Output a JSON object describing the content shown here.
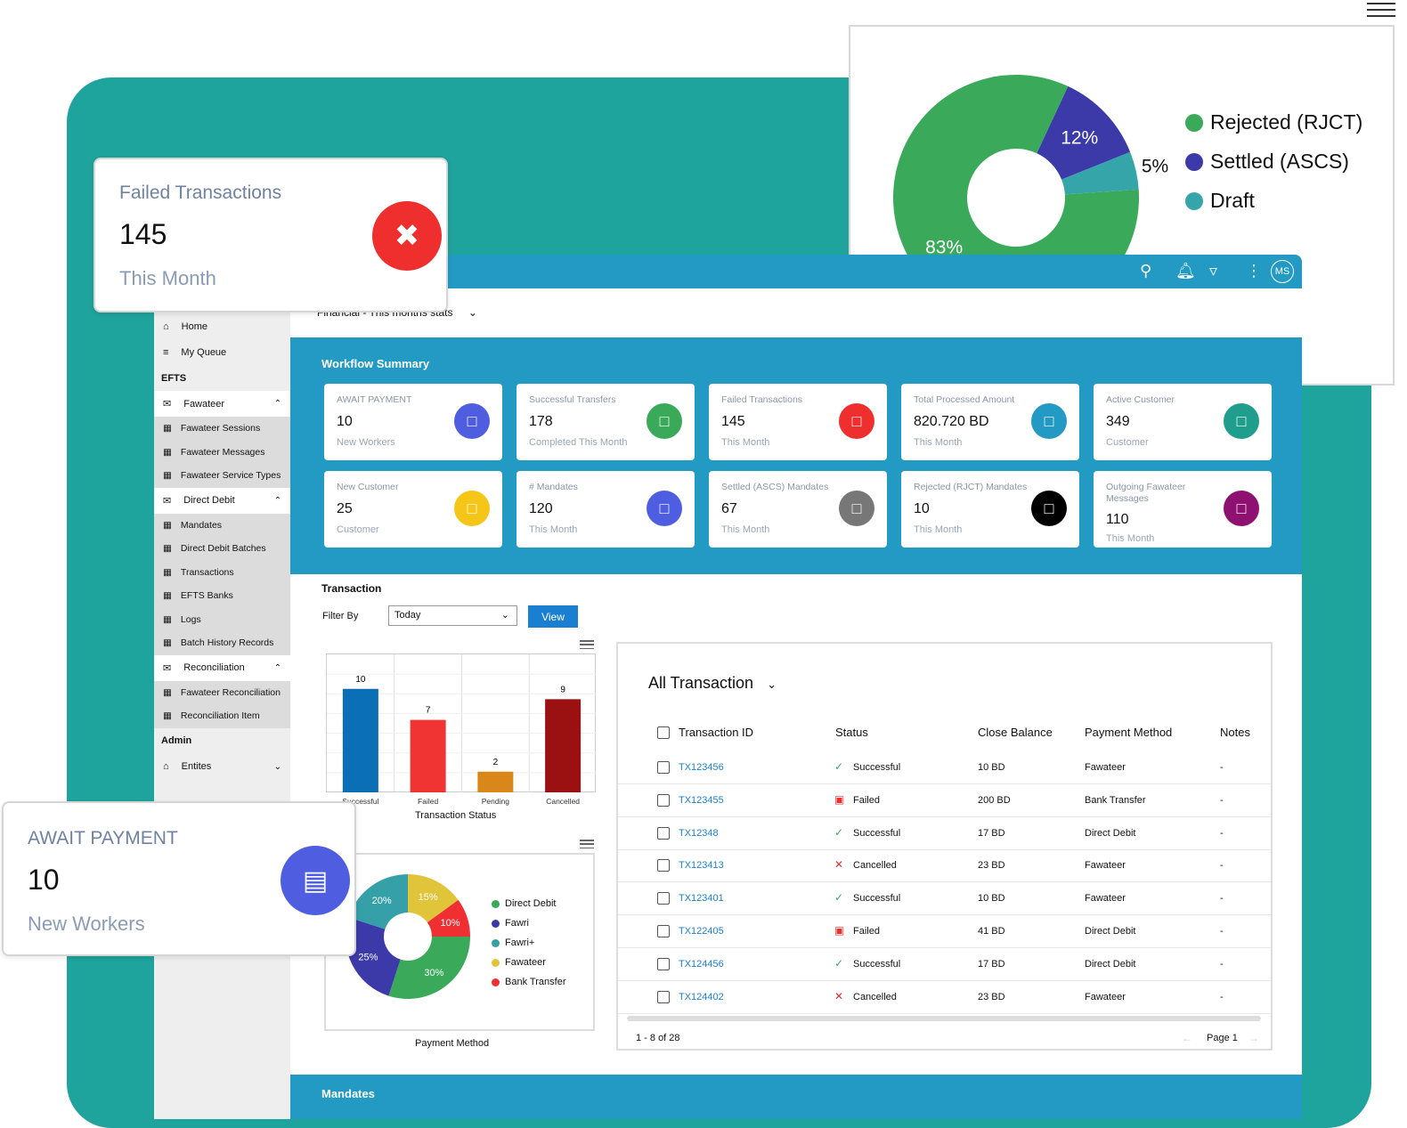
{
  "status_donut": {
    "type": "pie",
    "title": "",
    "series": [
      {
        "name": "Rejected (RJCT)",
        "value": 83,
        "label": "83%",
        "color": "#3aaa5a"
      },
      {
        "name": "Settled (ASCS)",
        "value": 12,
        "label": "12%",
        "color": "#3b3aa8"
      },
      {
        "name": "Draft",
        "value": 5,
        "label": "5%",
        "color": "#36a5a9"
      }
    ]
  },
  "header": {
    "avatar": "MS",
    "dashboard_select": "Financial - This months stats"
  },
  "sidebar": {
    "home": "Home",
    "my_queue": "My Queue",
    "efts": "EFTS",
    "fawateer": "Fawateer",
    "fawateer_items": [
      "Fawateer Sessions",
      "Fawateer Messages",
      "Fawateer Service Types"
    ],
    "direct_debit": "Direct Debit",
    "direct_debit_items": [
      "Mandates",
      "Direct Debit Batches",
      "Transactions",
      "EFTS Banks",
      "Logs",
      "Batch History Records"
    ],
    "reconciliation": "Reconciliation",
    "reconciliation_items": [
      "Fawateer Reconciliation",
      "Reconciliation Item"
    ],
    "admin": "Admin",
    "entities": "Entites"
  },
  "workflow": {
    "title": "Workflow Summary",
    "cards": [
      {
        "title": "AWAIT PAYMENT",
        "value": "10",
        "sub": "New Workers",
        "color": "#4f5ee0",
        "icon": "id-card-icon"
      },
      {
        "title": "Successful Transfers",
        "value": "178",
        "sub": "Completed This Month",
        "color": "#3aaa5a",
        "icon": "clipboard-check-icon"
      },
      {
        "title": "Failed Transactions",
        "value": "145",
        "sub": "This Month",
        "color": "#ef2e2e",
        "icon": "file-x-icon"
      },
      {
        "title": "Total Processed Amount",
        "value": "820.720 BD",
        "sub": "This Month",
        "color": "#229ac4",
        "icon": "money-icon"
      },
      {
        "title": "Active Customer",
        "value": "349",
        "sub": "Customer",
        "color": "#1f9e8e",
        "icon": "user-icon"
      },
      {
        "title": "New Customer",
        "value": "25",
        "sub": "Customer",
        "color": "#f5c518",
        "icon": "user-icon"
      },
      {
        "title": "# Mandates",
        "value": "120",
        "sub": "This Month",
        "color": "#4f5ee0",
        "icon": "calendar-gear-icon"
      },
      {
        "title": "Settled (ASCS) Mandates",
        "value": "67",
        "sub": "This Month",
        "color": "#777777",
        "icon": "calendar-gear-icon"
      },
      {
        "title": "Rejected (RJCT) Mandates",
        "value": "10",
        "sub": "This Month",
        "color": "#000000",
        "icon": "calendar-gear-icon"
      },
      {
        "title": "Outgoing Fawateer Messages",
        "value": "110",
        "sub": "This Month",
        "color": "#8e1070",
        "icon": "chat-icon"
      }
    ]
  },
  "transaction": {
    "title": "Transaction",
    "filter_label": "Filter By",
    "filter_value": "Today",
    "view_button": "View"
  },
  "chart_data": [
    {
      "type": "bar",
      "title": "Transaction Status",
      "categories": [
        "Successful",
        "Failed",
        "Pending",
        "Cancelled"
      ],
      "values": [
        10,
        7,
        2,
        9
      ],
      "colors": [
        "#0a6fb5",
        "#f03434",
        "#d9861a",
        "#9b1010"
      ],
      "ylim": [
        0,
        14
      ],
      "xlabel": "Transaction Status",
      "ylabel": ""
    },
    {
      "type": "pie",
      "title": "Payment Method",
      "series": [
        {
          "name": "Fawateer",
          "value": 15,
          "color": "#e0c43a"
        },
        {
          "name": "Bank Transfer",
          "value": 10,
          "color": "#ef2f32"
        },
        {
          "name": "Direct Debit",
          "value": 30,
          "color": "#3aaa5a"
        },
        {
          "name": "Fawri",
          "value": 25,
          "color": "#3b3aa8"
        },
        {
          "name": "Fawri+",
          "value": 20,
          "color": "#35a0a8"
        }
      ],
      "legend_order": [
        "Direct Debit",
        "Fawri",
        "Fawri+",
        "Fawateer",
        "Bank Transfer"
      ],
      "legend": "right"
    }
  ],
  "table": {
    "title": "All Transaction",
    "columns": [
      "Transaction ID",
      "Status",
      "Close Balance",
      "Payment Method",
      "Notes"
    ],
    "rows": [
      [
        "TX123456",
        "Successful",
        "10 BD",
        "Fawateer",
        "-"
      ],
      [
        "TX123455",
        "Failed",
        "200 BD",
        "Bank Transfer",
        "-"
      ],
      [
        "TX12348",
        "Successful",
        "17 BD",
        "Direct Debit",
        "-"
      ],
      [
        "TX123413",
        "Cancelled",
        "23 BD",
        "Fawateer",
        "-"
      ],
      [
        "TX123401",
        "Successful",
        "10 BD",
        "Fawateer",
        "-"
      ],
      [
        "TX122405",
        "Failed",
        "41 BD",
        "Direct Debit",
        "-"
      ],
      [
        "TX124456",
        "Successful",
        "17 BD",
        "Direct Debit",
        "-"
      ],
      [
        "TX124402",
        "Cancelled",
        "23 BD",
        "Fawateer",
        "-"
      ]
    ],
    "range": "1 - 8 of 28",
    "page": "Page 1"
  },
  "mandates_section": "Mandates",
  "overlay_failed": {
    "title": "Failed Transactions",
    "value": "145",
    "sub": "This Month"
  },
  "overlay_await": {
    "title": "AWAIT PAYMENT",
    "value": "10",
    "sub": "New Workers"
  }
}
